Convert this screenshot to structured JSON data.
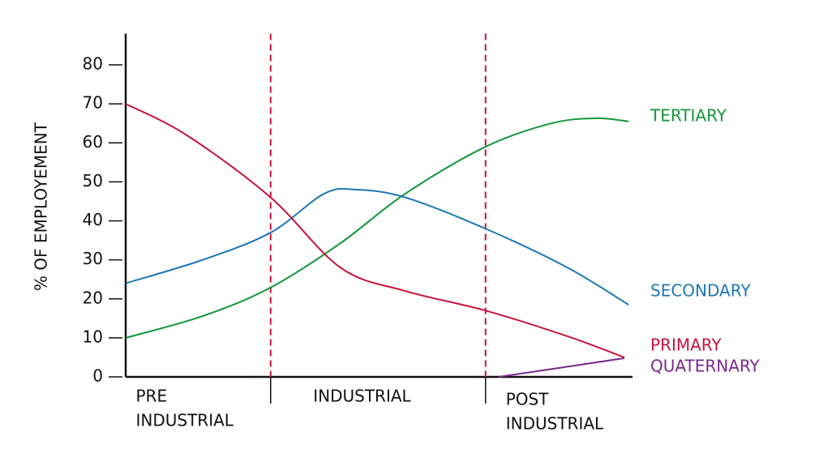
{
  "chart_data": {
    "type": "line",
    "y_label": "% OF EMPLOYEMENT",
    "ylim": [
      0,
      88
    ],
    "yticks": [
      0,
      10,
      20,
      30,
      40,
      50,
      60,
      70,
      80
    ],
    "xlim": [
      0,
      100
    ],
    "stage_dividers": [
      28.6,
      71
    ],
    "divider_color": "#c8143c",
    "stages": [
      {
        "lines": [
          "PRE",
          "INDUSTRIAL"
        ],
        "x": 2
      },
      {
        "lines": [
          "INDUSTRIAL"
        ],
        "x": 37
      },
      {
        "lines": [
          "POST",
          "INDUSTRIAL"
        ],
        "x": 75
      }
    ],
    "series": [
      {
        "name": "TERTIARY",
        "color": "#14963c",
        "x": [
          0,
          15.2,
          28.6,
          42.4,
          55.2,
          71,
          84,
          92.8,
          99.2
        ],
        "values": [
          10,
          15.6,
          22.9,
          34.3,
          47,
          59,
          65,
          66.3,
          65.5
        ]
      },
      {
        "name": "SECONDARY",
        "color": "#1e78b4",
        "x": [
          0,
          15.2,
          28.6,
          39.2,
          45.6,
          55.2,
          71,
          87.2,
          99.2
        ],
        "values": [
          24,
          30,
          37,
          47,
          48,
          46,
          38,
          28,
          18.5
        ]
      },
      {
        "name": "PRIMARY",
        "color": "#c8143c",
        "x": [
          0,
          12,
          28.6,
          42.4,
          55.2,
          71,
          87.2,
          98.4
        ],
        "values": [
          70,
          62,
          46,
          28,
          22,
          17,
          10.4,
          5
        ]
      },
      {
        "name": "QUATERNARY",
        "color": "#7a2a8c",
        "x": [
          73.6,
          98.4
        ],
        "values": [
          0,
          4.8
        ]
      }
    ]
  }
}
